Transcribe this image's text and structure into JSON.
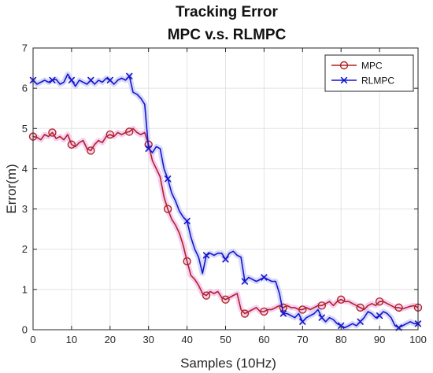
{
  "chart_data": {
    "type": "line",
    "title": "Tracking Error",
    "subtitle": "MPC v.s. RLMPC",
    "xlabel": "Samples (10Hz)",
    "ylabel": "Error(m)",
    "xlim": [
      0,
      100
    ],
    "ylim": [
      0,
      7
    ],
    "xticks": [
      "0",
      "10",
      "20",
      "30",
      "40",
      "50",
      "60",
      "70",
      "80",
      "90",
      "100"
    ],
    "yticks": [
      "0",
      "1",
      "2",
      "3",
      "4",
      "5",
      "6",
      "7"
    ],
    "grid": true,
    "legend_position": "top-right",
    "series": [
      {
        "name": "MPC",
        "color": "#B22222",
        "marker": "circle",
        "x": [
          0,
          1,
          2,
          3,
          4,
          5,
          6,
          7,
          8,
          9,
          10,
          11,
          12,
          13,
          14,
          15,
          16,
          17,
          18,
          19,
          20,
          21,
          22,
          23,
          24,
          25,
          26,
          27,
          28,
          29,
          30,
          31,
          32,
          33,
          34,
          35,
          36,
          37,
          38,
          39,
          40,
          41,
          42,
          43,
          44,
          45,
          46,
          47,
          48,
          49,
          50,
          51,
          52,
          53,
          54,
          55,
          56,
          57,
          58,
          59,
          60,
          61,
          62,
          63,
          64,
          65,
          66,
          67,
          68,
          69,
          70,
          71,
          72,
          73,
          74,
          75,
          76,
          77,
          78,
          79,
          80,
          81,
          82,
          83,
          84,
          85,
          86,
          87,
          88,
          89,
          90,
          91,
          92,
          93,
          94,
          95,
          96,
          97,
          98,
          99,
          100
        ],
        "values": [
          4.8,
          4.78,
          4.72,
          4.85,
          4.8,
          4.9,
          4.75,
          4.8,
          4.72,
          4.85,
          4.6,
          4.55,
          4.65,
          4.7,
          4.5,
          4.45,
          4.6,
          4.7,
          4.65,
          4.8,
          4.85,
          4.8,
          4.9,
          4.85,
          4.9,
          4.92,
          5.0,
          4.9,
          4.85,
          4.9,
          4.6,
          4.2,
          4.0,
          3.8,
          3.3,
          3.0,
          2.75,
          2.6,
          2.4,
          2.1,
          1.7,
          1.35,
          1.25,
          1.1,
          0.9,
          0.85,
          0.95,
          0.9,
          0.95,
          0.8,
          0.75,
          0.8,
          0.85,
          0.9,
          0.5,
          0.4,
          0.45,
          0.5,
          0.55,
          0.45,
          0.45,
          0.5,
          0.5,
          0.55,
          0.6,
          0.55,
          0.6,
          0.55,
          0.55,
          0.5,
          0.5,
          0.55,
          0.5,
          0.55,
          0.6,
          0.6,
          0.65,
          0.7,
          0.6,
          0.7,
          0.75,
          0.7,
          0.7,
          0.65,
          0.6,
          0.55,
          0.5,
          0.6,
          0.65,
          0.6,
          0.7,
          0.7,
          0.65,
          0.6,
          0.55,
          0.55,
          0.52,
          0.55,
          0.58,
          0.6,
          0.55
        ]
      },
      {
        "name": "RLMPC",
        "color": "#1515D0",
        "marker": "x",
        "x": [
          0,
          1,
          2,
          3,
          4,
          5,
          6,
          7,
          8,
          9,
          10,
          11,
          12,
          13,
          14,
          15,
          16,
          17,
          18,
          19,
          20,
          21,
          22,
          23,
          24,
          25,
          26,
          27,
          28,
          29,
          30,
          31,
          32,
          33,
          34,
          35,
          36,
          37,
          38,
          39,
          40,
          41,
          42,
          43,
          44,
          45,
          46,
          47,
          48,
          49,
          50,
          51,
          52,
          53,
          54,
          55,
          56,
          57,
          58,
          59,
          60,
          61,
          62,
          63,
          64,
          65,
          66,
          67,
          68,
          69,
          70,
          71,
          72,
          73,
          74,
          75,
          76,
          77,
          78,
          79,
          80,
          81,
          82,
          83,
          84,
          85,
          86,
          87,
          88,
          89,
          90,
          91,
          92,
          93,
          94,
          95,
          96,
          97,
          98,
          99,
          100
        ],
        "values": [
          6.2,
          6.1,
          6.15,
          6.2,
          6.15,
          6.2,
          6.22,
          6.1,
          6.15,
          6.35,
          6.2,
          6.05,
          6.2,
          6.15,
          6.1,
          6.2,
          6.1,
          6.2,
          6.15,
          6.25,
          6.2,
          6.1,
          6.2,
          6.25,
          6.2,
          6.3,
          5.9,
          5.85,
          5.75,
          5.6,
          4.5,
          4.4,
          4.55,
          4.5,
          4.0,
          3.75,
          3.4,
          3.2,
          2.95,
          2.8,
          2.7,
          2.3,
          2.0,
          1.8,
          1.4,
          1.85,
          1.9,
          1.85,
          1.9,
          1.9,
          1.75,
          1.9,
          1.95,
          1.85,
          1.8,
          1.2,
          1.3,
          1.25,
          1.2,
          1.25,
          1.3,
          1.25,
          1.2,
          1.2,
          0.9,
          0.4,
          0.4,
          0.35,
          0.3,
          0.4,
          0.2,
          0.3,
          0.35,
          0.4,
          0.5,
          0.3,
          0.2,
          0.3,
          0.25,
          0.15,
          0.1,
          0.05,
          0.1,
          0.15,
          0.1,
          0.2,
          0.3,
          0.45,
          0.4,
          0.3,
          0.35,
          0.45,
          0.4,
          0.3,
          0.1,
          0.05,
          0.1,
          0.15,
          0.2,
          0.15,
          0.15
        ]
      }
    ]
  }
}
